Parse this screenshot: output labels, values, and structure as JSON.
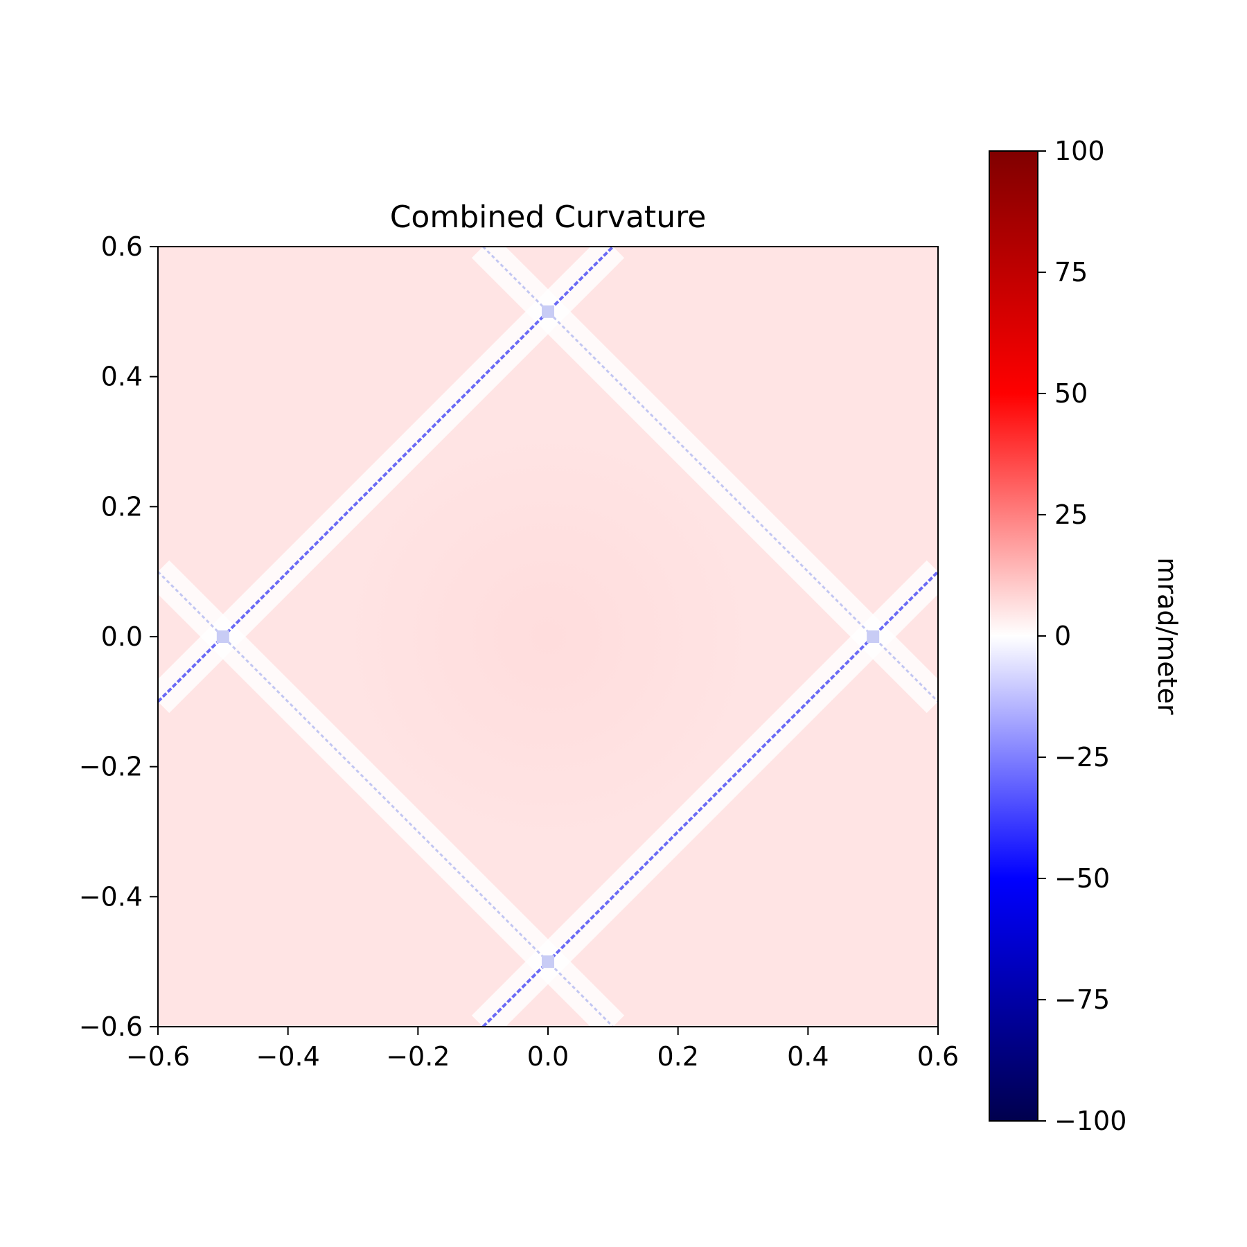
{
  "chart_data": {
    "type": "heatmap",
    "title": "Combined Curvature",
    "xlabel": "",
    "ylabel": "",
    "xlim": [
      -0.6,
      0.6
    ],
    "ylim": [
      -0.6,
      0.6
    ],
    "x_ticks": [
      -0.6,
      -0.4,
      -0.2,
      0.0,
      0.2,
      0.4,
      0.6
    ],
    "x_tick_labels": [
      "−0.6",
      "−0.4",
      "−0.2",
      "0.0",
      "0.2",
      "0.4",
      "0.6"
    ],
    "y_ticks": [
      -0.6,
      -0.4,
      -0.2,
      0.0,
      0.2,
      0.4,
      0.6
    ],
    "y_tick_labels": [
      "−0.6",
      "−0.4",
      "−0.2",
      "0.0",
      "0.2",
      "0.4",
      "0.6"
    ],
    "grid": false,
    "colormap": "seismic",
    "colorbar": {
      "label": "mrad/meter",
      "range": [
        -100,
        100
      ],
      "ticks": [
        100,
        75,
        50,
        25,
        0,
        -25,
        -50,
        -75,
        -100
      ],
      "tick_labels": [
        "100",
        "75",
        "50",
        "25",
        "0",
        "−25",
        "−50",
        "−75",
        "−100"
      ],
      "placement": "right"
    },
    "features": {
      "background_value_approx": 8,
      "diamond_vertices": [
        [
          0.0,
          0.5
        ],
        [
          0.5,
          0.0
        ],
        [
          0.0,
          -0.5
        ],
        [
          -0.5,
          0.0
        ]
      ],
      "ridge_value_approx": -45
    }
  }
}
